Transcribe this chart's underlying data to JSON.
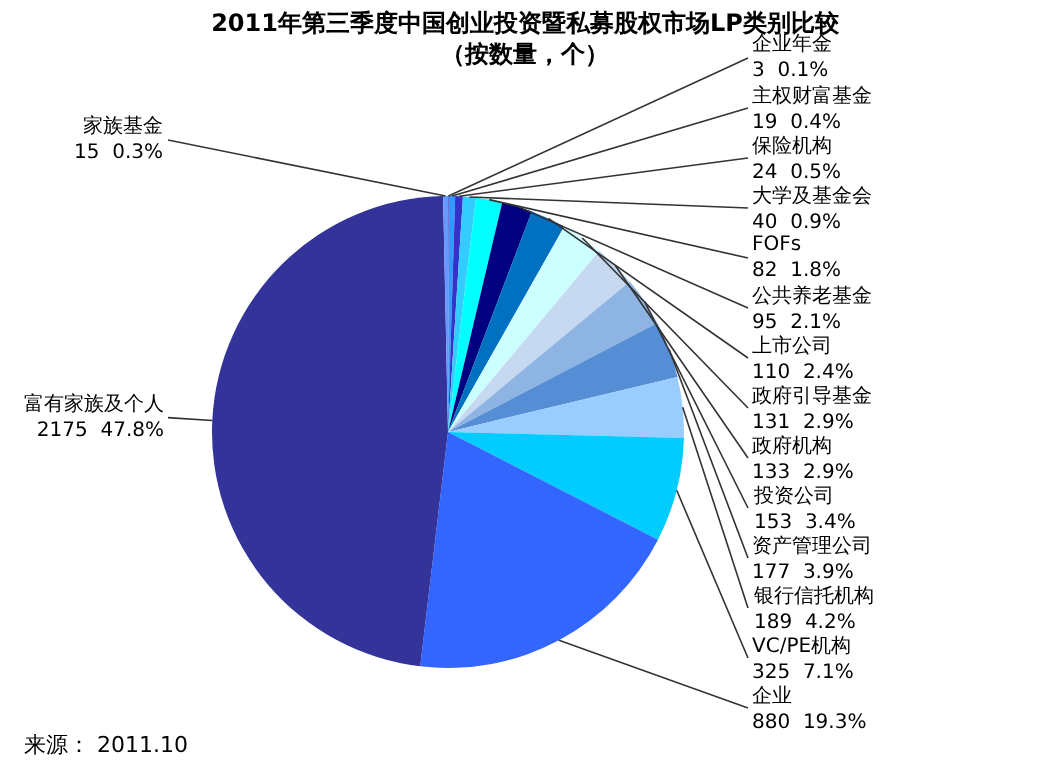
{
  "chart_data": {
    "type": "pie",
    "title": "2011年第三季度中国创业投资暨私募股权市场LP类别比较",
    "subtitle": "（按数量，个）",
    "categories": [
      "企业年金",
      "主权财富基金",
      "保险机构",
      "大学及基金会",
      "FOFs",
      "公共养老基金",
      "上市公司",
      "政府引导基金",
      "政府机构",
      "投资公司",
      "资产管理公司",
      "银行信托机构",
      "VC/PE机构",
      "企业",
      "富有家族及个人",
      "家族基金"
    ],
    "values": [
      3,
      19,
      24,
      40,
      82,
      95,
      110,
      131,
      133,
      153,
      177,
      189,
      325,
      880,
      2175,
      15
    ],
    "value_labels": [
      "3\n0.1%",
      "19\n0.4%",
      "24\n0.5%",
      "40\n0.9%",
      "82\n1.8%",
      "95\n2.1%",
      "110\n2.4%",
      "131\n2.9%",
      "133\n2.9%",
      "153\n3.4%",
      "177\n3.9%",
      "189\n4.2%",
      "325\n7.1%",
      "880\n19.3%",
      "2175\n47.8%",
      "15\n0.3%"
    ],
    "colors": [
      "#6666cc",
      "#3399ff",
      "#3333cc",
      "#33ccff",
      "#00ffff",
      "#000080",
      "#0070c0",
      "#ccffff",
      "#c6d9f1",
      "#8eb4e3",
      "#558ed5",
      "#99ccff",
      "#00ccff",
      "#3366ff",
      "#333399",
      "#6699ff"
    ],
    "annotations": [
      "来源： 2011.10"
    ]
  }
}
